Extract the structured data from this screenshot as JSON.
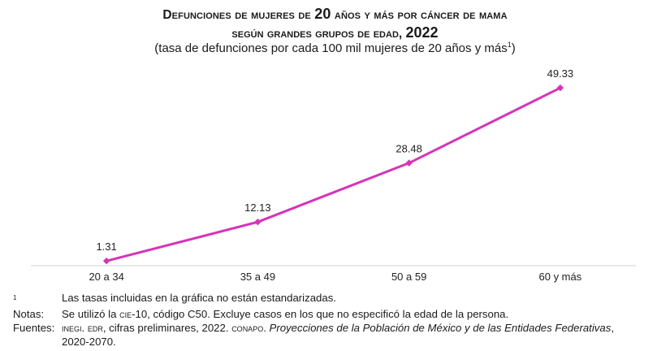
{
  "title": {
    "line1_prefix": "Defunciones de mujeres de ",
    "line1_number": "20",
    "line1_suffix": " años y más por cáncer de mama",
    "line2_prefix": "según grandes grupos de edad, ",
    "line2_year": "2022",
    "subtitle_main": "(tasa de defunciones por cada 100 mil mujeres de 20 años y más",
    "subtitle_sup": "1",
    "subtitle_close": ")"
  },
  "chart_data": {
    "type": "line",
    "title": "Defunciones de mujeres de 20 años y más por cáncer de mama según grandes grupos de edad, 2022",
    "subtitle": "(tasa de defunciones por cada 100 mil mujeres de 20 años y más1)",
    "categories": [
      "20 a 34",
      "35 a 49",
      "50 a 59",
      "60 y más"
    ],
    "series": [
      {
        "name": "Tasa de defunciones",
        "values": [
          1.31,
          12.13,
          28.48,
          49.33
        ],
        "labels": [
          "1.31",
          "12.13",
          "28.48",
          "49.33"
        ],
        "color": "#d633b8"
      }
    ],
    "xlabel": "",
    "ylabel": "",
    "ylim": [
      0,
      50
    ],
    "grid": false,
    "legend": "none"
  },
  "notes": {
    "footnote_key": "1",
    "footnote_text": "Las tasas incluidas en la gráfica no están estandarizadas.",
    "notas_key": "Notas:",
    "notas_pre": "Se utilizó la ",
    "notas_cie": "cie",
    "notas_post": "-10, código C50. Excluye casos en los que no especificó la edad de la persona.",
    "fuentes_key": "Fuentes:",
    "fuentes_inegi": "inegi",
    "fuentes_dot1": ". ",
    "fuentes_edr": "edr",
    "fuentes_mid": ", cifras preliminares, 2022. ",
    "fuentes_conapo": "conapo",
    "fuentes_dot2": ". ",
    "fuentes_italic": "Proyecciones de la Población de México y de las Entidades Federativas",
    "fuentes_end": ", 2020-2070."
  }
}
